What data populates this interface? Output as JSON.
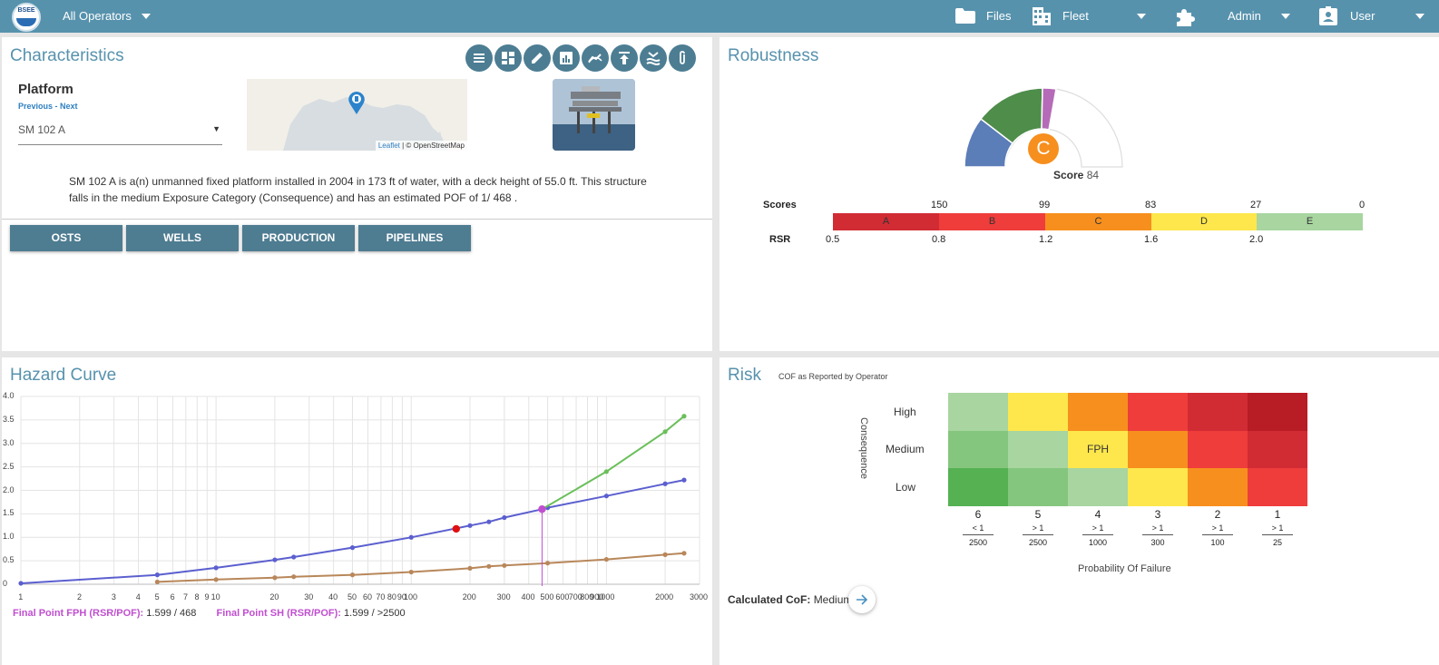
{
  "topbar": {
    "logo_text": "BSEE",
    "operator_label": "All Operators",
    "files_label": "Files",
    "fleet_label": "Fleet",
    "admin_label": "Admin",
    "user_label": "User"
  },
  "characteristics": {
    "title": "Characteristics",
    "platform_heading": "Platform",
    "previous_label": "Previous",
    "nav_separator": " - ",
    "next_label": "Next",
    "platform_value": "SM 102 A",
    "map_attribution_leaflet": "Leaflet",
    "map_attribution_rest": " | © OpenStreetMap",
    "description_line1": "SM 102 A is a(n) unmanned fixed platform installed in 2004 in 173 ft of water, with a deck height of 55.0 ft. This structure",
    "description_line2": "falls in the medium Exposure Category (Consequence) and has an estimated POF of 1/ 468 .",
    "tabs": [
      {
        "label": "OSTS"
      },
      {
        "label": "WELLS"
      },
      {
        "label": "PRODUCTION"
      },
      {
        "label": "PIPELINES"
      }
    ],
    "toolbar_icons": [
      "list-icon",
      "dashboard-icon",
      "edit-icon",
      "chart-icon",
      "trend-icon",
      "upload-icon",
      "water-icon",
      "attachment-icon"
    ]
  },
  "robustness": {
    "title": "Robustness",
    "grade": "C",
    "score_label": "Score",
    "score_value": "84",
    "scores_label": "Scores",
    "rsr_label": "RSR",
    "score_ticks": [
      "150",
      "99",
      "83",
      "27",
      "0"
    ],
    "rsr_ticks": [
      "0.5",
      "0.8",
      "1.2",
      "1.6",
      "2.0"
    ],
    "grades": [
      {
        "label": "A",
        "color": "#d12b34"
      },
      {
        "label": "B",
        "color": "#ee3d3b"
      },
      {
        "label": "C",
        "color": "#f78f1e"
      },
      {
        "label": "D",
        "color": "#fde74c"
      },
      {
        "label": "E",
        "color": "#a8d5a0"
      }
    ],
    "gauge_colors": {
      "blue": "#5b7db8",
      "green": "#4e8d4a",
      "purple": "#b56bb8",
      "badge": "#f78f1e"
    }
  },
  "hazard": {
    "title": "Hazard Curve",
    "final_fph_label": "Final Point FPH (RSR/POF):",
    "final_fph_value": "1.599 / 468",
    "final_sh_label": "Final Point SH (RSR/POF):",
    "final_sh_value": "1.599 / >2500",
    "y_ticks": [
      "4.0",
      "3.5",
      "3.0",
      "2.5",
      "2.0",
      "1.5",
      "1.0",
      "0.5",
      "0"
    ],
    "x_ticks": [
      "1",
      "2",
      "3",
      "4",
      "5",
      "6",
      "7",
      "8",
      "9",
      "10",
      "20",
      "30",
      "40",
      "50",
      "60",
      "70",
      "80",
      "90",
      "100",
      "200",
      "300",
      "400",
      "500",
      "600",
      "700",
      "800",
      "900",
      "1000",
      "2000",
      "3000"
    ],
    "chart_data": {
      "type": "line",
      "x_scale": "log",
      "xlim": [
        1,
        3000
      ],
      "ylim": [
        0,
        4.0
      ],
      "grid": true,
      "series": [
        {
          "color": "#5b5fcf",
          "points": [
            [
              1,
              0.02
            ],
            [
              5,
              0.2
            ],
            [
              10,
              0.35
            ],
            [
              20,
              0.52
            ],
            [
              25,
              0.58
            ],
            [
              50,
              0.78
            ],
            [
              100,
              1.0
            ],
            [
              200,
              1.25
            ],
            [
              250,
              1.33
            ],
            [
              300,
              1.42
            ],
            [
              468,
              1.599
            ],
            [
              500,
              1.63
            ],
            [
              1000,
              1.88
            ],
            [
              2000,
              2.14
            ],
            [
              2500,
              2.22
            ]
          ]
        },
        {
          "color": "#b8875a",
          "points": [
            [
              5,
              0.05
            ],
            [
              10,
              0.1
            ],
            [
              20,
              0.14
            ],
            [
              25,
              0.16
            ],
            [
              50,
              0.2
            ],
            [
              100,
              0.26
            ],
            [
              200,
              0.34
            ],
            [
              250,
              0.38
            ],
            [
              300,
              0.4
            ],
            [
              500,
              0.45
            ],
            [
              1000,
              0.53
            ],
            [
              2000,
              0.63
            ],
            [
              2500,
              0.66
            ]
          ]
        },
        {
          "color": "#6abf5a",
          "points": [
            [
              468,
              1.599
            ],
            [
              1000,
              2.4
            ],
            [
              2000,
              3.25
            ],
            [
              2500,
              3.58
            ]
          ]
        }
      ],
      "markers": [
        {
          "x": 170,
          "y": 1.18,
          "color": "#e01010"
        },
        {
          "x": 468,
          "y": 1.599,
          "color": "#c04fd0"
        }
      ],
      "vertical_line": {
        "x": 468,
        "y": 1.599,
        "color": "#c04fd0"
      }
    }
  },
  "risk": {
    "title": "Risk",
    "subtitle": "COF as Reported by Operator",
    "y_axis_label": "Consequence",
    "x_axis_label": "Probability Of Failure",
    "rows": [
      "High",
      "Medium",
      "Low"
    ],
    "columns": [
      {
        "num": "6",
        "top": "< 1",
        "bottom": "2500"
      },
      {
        "num": "5",
        "top": "> 1",
        "bottom": "2500"
      },
      {
        "num": "4",
        "top": "> 1",
        "bottom": "1000"
      },
      {
        "num": "3",
        "top": "> 1",
        "bottom": "300"
      },
      {
        "num": "2",
        "top": "> 1",
        "bottom": "100"
      },
      {
        "num": "1",
        "top": "> 1",
        "bottom": "25"
      }
    ],
    "cell_colors": [
      [
        "#a8d5a0",
        "#fde74c",
        "#f78f1e",
        "#ee3d3b",
        "#d12b34",
        "#b81c25"
      ],
      [
        "#85c67f",
        "#a8d5a0",
        "#fde74c",
        "#f78f1e",
        "#ee3d3b",
        "#d12b34"
      ],
      [
        "#55b152",
        "#85c67f",
        "#a8d5a0",
        "#fde74c",
        "#f78f1e",
        "#ee3d3b"
      ]
    ],
    "cell_label": "FPH",
    "calculated_label": "Calculated CoF:",
    "calculated_value": "Medium"
  }
}
